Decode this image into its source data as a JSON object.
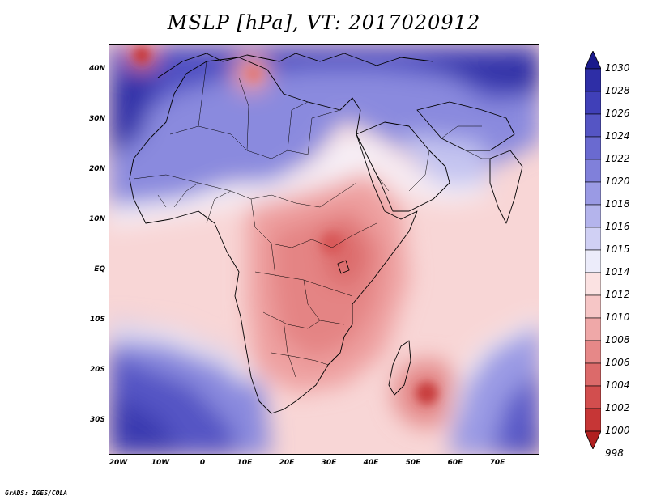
{
  "title": "MSLP [hPa], VT: 2017020912",
  "credit": "GrADS: IGES/COLA",
  "y_axis_labels": [
    "40N",
    "30N",
    "20N",
    "10N",
    "EQ",
    "10S",
    "20S",
    "30S"
  ],
  "x_axis_labels": [
    "20W",
    "10W",
    "0",
    "10E",
    "20E",
    "30E",
    "40E",
    "50E",
    "60E",
    "70E"
  ],
  "colorbar": {
    "levels": [
      "1030",
      "1028",
      "1026",
      "1024",
      "1022",
      "1020",
      "1018",
      "1016",
      "1015",
      "1014",
      "1012",
      "1010",
      "1008",
      "1006",
      "1004",
      "1002",
      "1000",
      "998"
    ],
    "colors": [
      "#1a1a8c",
      "#2e2ea6",
      "#4040b8",
      "#5555c4",
      "#6a6ad0",
      "#8080da",
      "#9a9ae4",
      "#b4b4ec",
      "#d0d0f4",
      "#ececfa",
      "#fbe2e2",
      "#f6c6c6",
      "#efa8a8",
      "#e68888",
      "#dc6a6a",
      "#d24e4e",
      "#c63636",
      "#b02020"
    ]
  },
  "map": {
    "lon_range": [
      -22,
      80
    ],
    "lat_range": [
      -37,
      45
    ]
  }
}
